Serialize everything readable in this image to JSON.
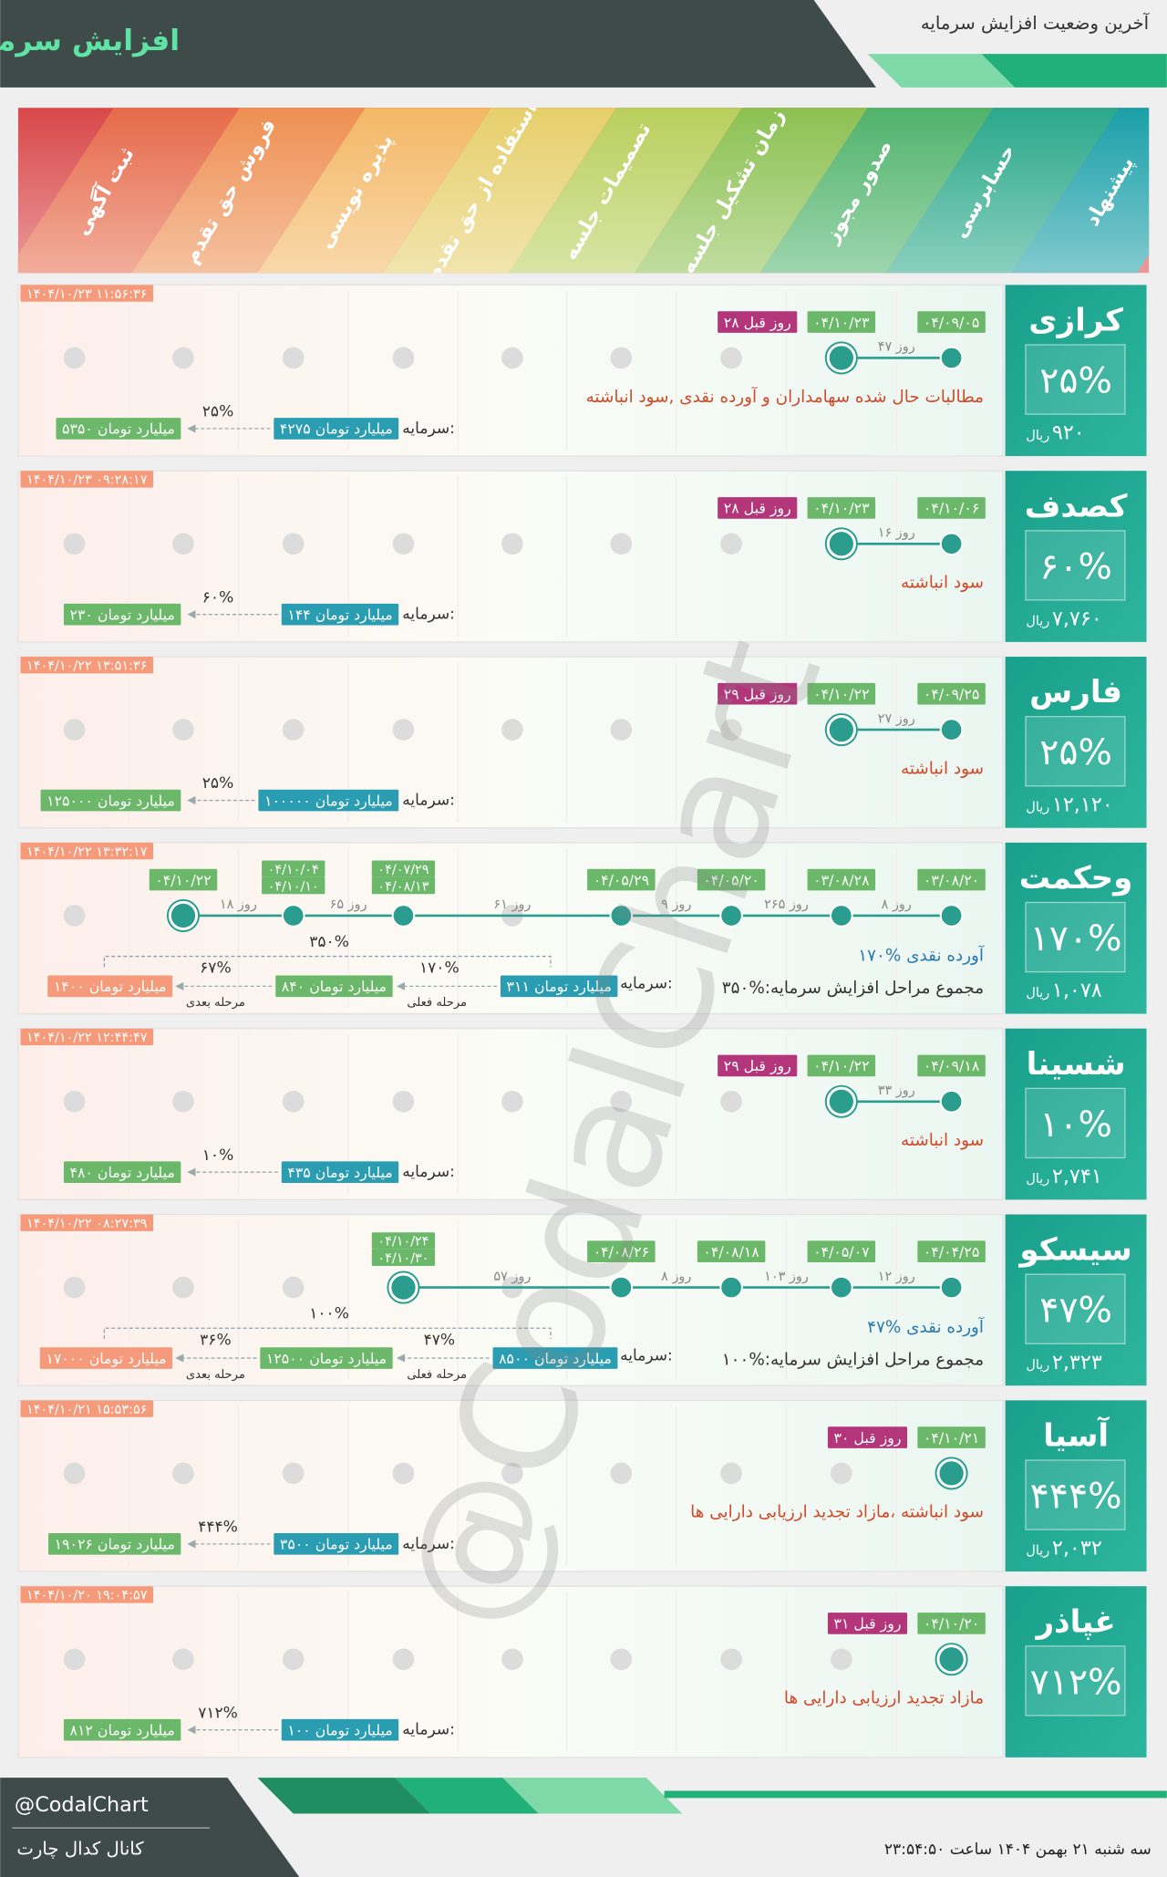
{
  "header": {
    "title": "افزایش سرمایه",
    "subtitle": "آخرین وضعیت افزایش سرمایه"
  },
  "stages": [
    "پیشنهاد",
    "حسابرسی",
    "صدور مجوز",
    "زمان تشکیل جلسه",
    "تصمیمات جلسه",
    "استفاده از حق تقدم",
    "پذیره نویسی",
    "فروش حق تقدم",
    "ثبت آگهی"
  ],
  "capital_label": "سرمایه:",
  "price_unit": "ریال",
  "step_labels": [
    "مرحله فعلی",
    "مرحله بعدی"
  ],
  "watermark": "@CodalChart",
  "companies": [
    {
      "name": "کرازی",
      "percent": "۲۵%",
      "price": "۹۲۰",
      "timestamp": "۱۴۰۴/۱۰/۲۳ ۱۱:۵۶:۳۶",
      "dates": [
        [
          "۰۴/۰۹/۰۵"
        ],
        [
          "۰۴/۱۰/۲۳"
        ]
      ],
      "days": [
        "۴۷ روز"
      ],
      "ago": "۲۸ روز قبل",
      "description": [
        "مطالبات حال شده سهامداران و آورده نقدی ,سود انباشته"
      ],
      "capital": [
        "۴۲۷۵ میلیارد تومان",
        "۵۳۵۰ میلیارد تومان"
      ],
      "steps": [
        "۲۵%"
      ]
    },
    {
      "name": "کصدف",
      "percent": "۶۰%",
      "price": "۷,۷۶۰",
      "timestamp": "۱۴۰۴/۱۰/۲۳ ۰۹:۲۸:۱۷",
      "dates": [
        [
          "۰۴/۱۰/۰۶"
        ],
        [
          "۰۴/۱۰/۲۳"
        ]
      ],
      "days": [
        "۱۶ روز"
      ],
      "ago": "۲۸ روز قبل",
      "description": [
        "سود انباشته"
      ],
      "capital": [
        "۱۴۴ میلیارد تومان",
        "۲۳۰ میلیارد تومان"
      ],
      "steps": [
        "۶۰%"
      ]
    },
    {
      "name": "فارس",
      "percent": "۲۵%",
      "price": "۱۲,۱۲۰",
      "timestamp": "۱۴۰۴/۱۰/۲۲ ۱۳:۵۱:۳۶",
      "dates": [
        [
          "۰۴/۰۹/۲۵"
        ],
        [
          "۰۴/۱۰/۲۲"
        ]
      ],
      "days": [
        "۲۷ روز"
      ],
      "ago": "۲۹ روز قبل",
      "description": [
        "سود انباشته"
      ],
      "capital": [
        "۱۰۰۰۰۰ میلیارد تومان",
        "۱۲۵۰۰۰ میلیارد تومان"
      ],
      "steps": [
        "۲۵%"
      ]
    },
    {
      "name": "وحکمت",
      "percent": "۱۷۰%",
      "price": "۱,۰۷۸",
      "timestamp": "۱۴۰۴/۱۰/۲۲ ۱۳:۳۲:۱۷",
      "dates": [
        [
          "۰۳/۰۸/۲۰"
        ],
        [
          "۰۳/۰۸/۲۸"
        ],
        [
          "۰۴/۰۵/۲۰"
        ],
        [
          "۰۴/۰۵/۲۹"
        ],
        [
          "۰۴/۰۷/۲۹",
          "۰۴/۰۸/۱۳"
        ],
        [
          "۰۴/۱۰/۰۴",
          "۰۴/۱۰/۱۰"
        ],
        [
          "۰۴/۱۰/۲۲"
        ]
      ],
      "days": [
        "۸ روز",
        "۲۶۵ روز",
        "۹ روز",
        "۶۱ روز",
        "۶۵ روز",
        "۱۸ روز"
      ],
      "description": [
        "۱۷۰% آورده نقدی",
        "مجموع مراحل افزایش سرمایه:%۳۵۰"
      ],
      "capital": [
        "۳۱۱ میلیارد تومان",
        "۸۴۰ میلیارد تومان",
        "۱۴۰۰ میلیارد تومان"
      ],
      "steps": [
        "۱۷۰%",
        "۶۷%"
      ],
      "total": "۳۵۰%"
    },
    {
      "name": "شسینا",
      "percent": "۱۰%",
      "price": "۲,۷۴۱",
      "timestamp": "۱۴۰۴/۱۰/۲۲ ۱۲:۴۴:۴۷",
      "dates": [
        [
          "۰۴/۰۹/۱۸"
        ],
        [
          "۰۴/۱۰/۲۲"
        ]
      ],
      "days": [
        "۳۳ روز"
      ],
      "ago": "۲۹ روز قبل",
      "description": [
        "سود انباشته"
      ],
      "capital": [
        "۴۳۵ میلیارد تومان",
        "۴۸۰ میلیارد تومان"
      ],
      "steps": [
        "۱۰%"
      ]
    },
    {
      "name": "سیسکو",
      "percent": "۴۷%",
      "price": "۲,۳۲۳",
      "timestamp": "۱۴۰۴/۱۰/۲۲ ۰۸:۲۷:۳۹",
      "dates": [
        [
          "۰۴/۰۴/۲۵"
        ],
        [
          "۰۴/۰۵/۰۷"
        ],
        [
          "۰۴/۰۸/۱۸"
        ],
        [
          "۰۴/۰۸/۲۶"
        ],
        [
          "۰۴/۱۰/۲۴",
          "۰۴/۱۰/۳۰"
        ]
      ],
      "days": [
        "۱۲ روز",
        "۱۰۳ روز",
        "۸ روز",
        "۵۷ روز"
      ],
      "description": [
        "۴۷% آورده نقدی",
        "مجموع مراحل افزایش سرمایه:%۱۰۰"
      ],
      "capital": [
        "۸۵۰۰ میلیارد تومان",
        "۱۲۵۰۰ میلیارد تومان",
        "۱۷۰۰۰ میلیارد تومان"
      ],
      "steps": [
        "۴۷%",
        "۳۶%"
      ],
      "total": "۱۰۰%"
    },
    {
      "name": "آسیا",
      "percent": "۴۴۴%",
      "price": "۲,۰۳۲",
      "timestamp": "۱۴۰۴/۱۰/۲۱ ۱۵:۵۳:۵۶",
      "dates": [
        [
          "۰۴/۱۰/۲۱"
        ]
      ],
      "days": [],
      "ago": "۳۰ روز قبل",
      "description": [
        "سود انباشته ،مازاد تجدید ارزیابی دارایی ها"
      ],
      "capital": [
        "۳۵۰۰ میلیارد تومان",
        "۱۹۰۲۶ میلیارد تومان"
      ],
      "steps": [
        "۴۴۴%"
      ]
    },
    {
      "name": "غپاذر",
      "percent": "۷۱۲%",
      "timestamp": "۱۴۰۴/۱۰/۲۰ ۱۹:۰۴:۵۷",
      "dates": [
        [
          "۰۴/۱۰/۲۰"
        ]
      ],
      "days": [],
      "ago": "۳۱ روز قبل",
      "description": [
        "مازاد تجدید ارزیابی دارایی ها"
      ],
      "capital": [
        "۱۰۰ میلیارد تومان",
        "۸۱۲ میلیارد تومان"
      ],
      "steps": [
        "۷۱۲%"
      ]
    }
  ],
  "footer": {
    "handle": "@CodalChart",
    "channel": "کانال کدال چارت",
    "date": "سه شنبه ۲۱ بهمن ۱۴۰۴ ساعت ۲۳:۵۴:۵۰"
  }
}
